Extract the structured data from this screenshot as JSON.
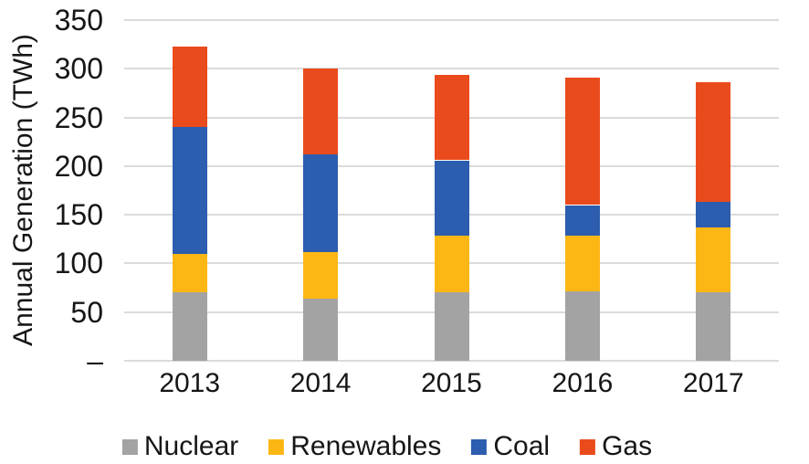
{
  "chart_data": {
    "type": "bar",
    "stacked": true,
    "title": "",
    "xlabel": "",
    "ylabel": "Annual Generation (TWh)",
    "categories": [
      "2013",
      "2014",
      "2015",
      "2016",
      "2017"
    ],
    "series": [
      {
        "name": "Nuclear",
        "color": "#A3A3A3",
        "values": [
          70,
          64,
          70,
          71,
          70
        ]
      },
      {
        "name": "Renewables",
        "color": "#FDB714",
        "values": [
          40,
          48,
          59,
          58,
          67
        ]
      },
      {
        "name": "Coal",
        "color": "#2C5DAE",
        "values": [
          130,
          100,
          77,
          31,
          26
        ]
      },
      {
        "name": "Gas",
        "color": "#EA4B1D",
        "values": [
          83,
          88,
          88,
          131,
          123
        ]
      }
    ],
    "totals": [
      323,
      300,
      294,
      291,
      286
    ],
    "ylim": [
      0,
      350
    ],
    "ytick_step": 50,
    "zero_tick_label": "–",
    "grid": "horizontal",
    "gridline_color": "#DBDBDB",
    "text_color": "#161616",
    "background": "#FFFFFF",
    "legend_position": "bottom"
  }
}
